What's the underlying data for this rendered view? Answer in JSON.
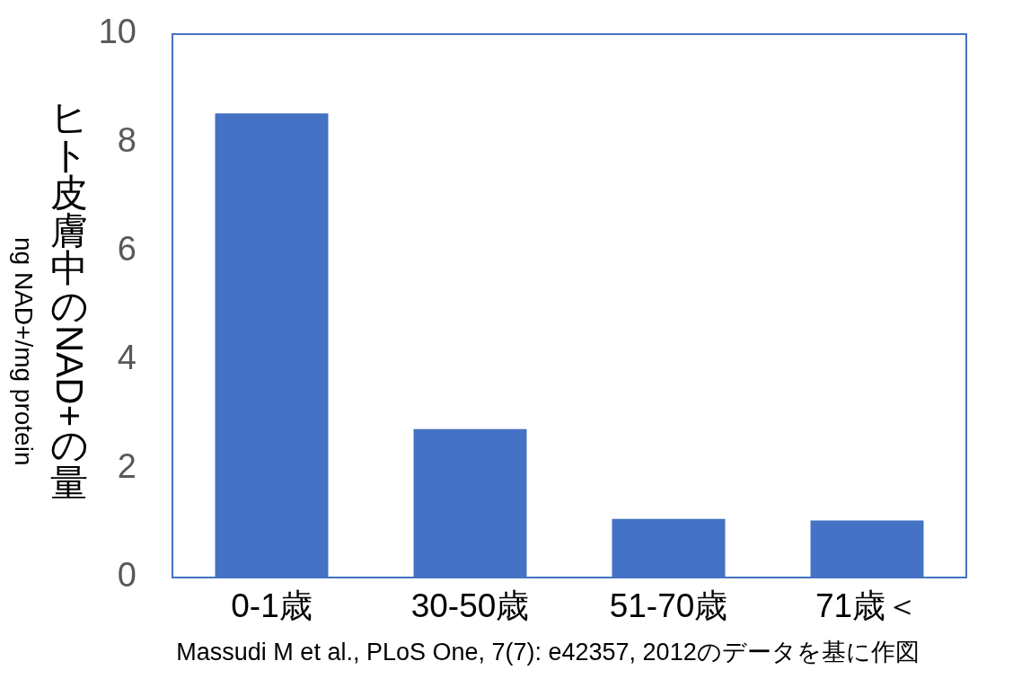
{
  "chart_data": {
    "type": "bar",
    "categories": [
      "0-1歳",
      "30-50歳",
      "51-70歳",
      "71歳＜"
    ],
    "values": [
      8.54,
      2.73,
      1.08,
      1.05
    ],
    "color": "#4472c4",
    "ylim": [
      0,
      10
    ],
    "yticks": [
      0,
      2,
      4,
      6,
      8,
      10
    ],
    "ylabel": "ヒト皮膚中のNAD+の量\nng NAD+/mg protein",
    "annotations": [
      "Massudi M et al., PLoS One, 7(7): e42357, 2012のデータを基に作図"
    ]
  }
}
